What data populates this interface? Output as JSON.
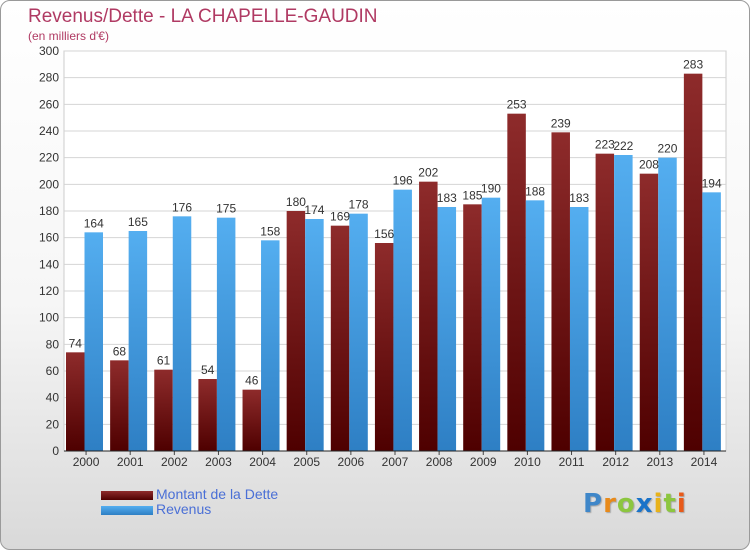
{
  "header": {
    "title": "Revenus/Dette - LA CHAPELLE-GAUDIN",
    "subtitle": "(en milliers d'€)"
  },
  "chart_data": {
    "type": "bar",
    "title": "Revenus/Dette - LA CHAPELLE-GAUDIN",
    "subtitle": "(en milliers d'€)",
    "xlabel": "",
    "ylabel": "",
    "ylim": [
      0,
      300
    ],
    "ytick_step": 20,
    "grid": true,
    "legend_position": "bottom-left",
    "categories": [
      "2000",
      "2001",
      "2002",
      "2003",
      "2004",
      "2005",
      "2006",
      "2007",
      "2008",
      "2009",
      "2010",
      "2011",
      "2012",
      "2013",
      "2014"
    ],
    "series": [
      {
        "name": "Montant de la Dette",
        "color": "#7a1a1a",
        "values": [
          74,
          68,
          61,
          54,
          46,
          180,
          169,
          156,
          202,
          185,
          253,
          239,
          223,
          208,
          283
        ]
      },
      {
        "name": "Revenus",
        "color": "#4aa3e8",
        "values": [
          164,
          165,
          176,
          175,
          158,
          174,
          178,
          196,
          183,
          190,
          188,
          183,
          222,
          220,
          194
        ]
      }
    ]
  },
  "legend": {
    "items": [
      {
        "label": "Montant de la Dette",
        "color": "#7a1a1a"
      },
      {
        "label": "Revenus",
        "color": "#4aa3e8"
      }
    ]
  },
  "logo": {
    "letters": [
      "P",
      "r",
      "o",
      "x",
      "i",
      "t",
      "i"
    ],
    "colors": [
      "#3f87c9",
      "#e88a1a",
      "#8cc63f",
      "#1a73c9",
      "#e8b21a",
      "#8cc63f",
      "#e85a1a"
    ]
  }
}
